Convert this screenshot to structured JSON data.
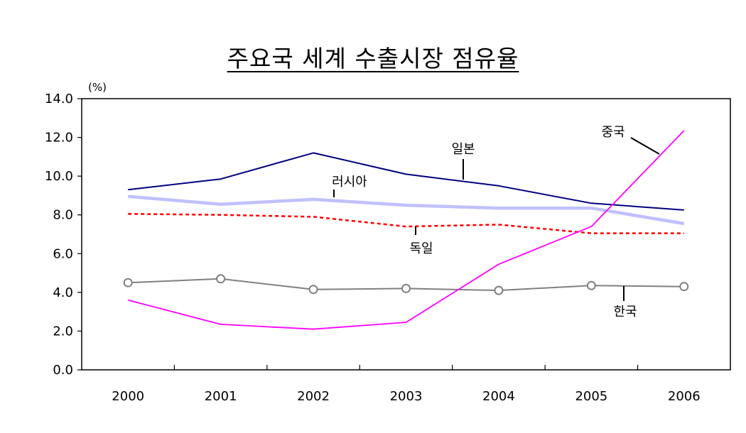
{
  "chart_data": {
    "type": "line",
    "title": "주요국 세계 수출시장 점유율",
    "unit_label": "(%)",
    "xlabel": "",
    "ylabel": "",
    "x": [
      "2000",
      "2001",
      "2002",
      "2003",
      "2004",
      "2005",
      "2006"
    ],
    "y_ticks": [
      "0.0",
      "2.0",
      "4.0",
      "6.0",
      "8.0",
      "10.0",
      "12.0",
      "14.0"
    ],
    "ylim": [
      0,
      14
    ],
    "grid": false,
    "series": [
      {
        "name": "일본",
        "values": [
          9.3,
          9.85,
          11.2,
          10.1,
          9.5,
          8.6,
          8.25
        ],
        "color": "#000080",
        "style": "solid"
      },
      {
        "name": "러시아",
        "values": [
          8.95,
          8.55,
          8.8,
          8.5,
          8.35,
          8.35,
          7.55
        ],
        "color": "#c0c0ff",
        "style": "thick"
      },
      {
        "name": "독일",
        "values": [
          8.05,
          8.0,
          7.9,
          7.4,
          7.5,
          7.05,
          7.05
        ],
        "color": "#ff0000",
        "style": "dashed"
      },
      {
        "name": "한국",
        "values": [
          4.5,
          4.7,
          4.15,
          4.2,
          4.1,
          4.35,
          4.3
        ],
        "color": "#808080",
        "style": "circles"
      },
      {
        "name": "중국",
        "values": [
          3.6,
          2.35,
          2.1,
          2.45,
          5.45,
          7.4,
          12.35
        ],
        "color": "#ff00ff",
        "style": "solid"
      }
    ]
  }
}
